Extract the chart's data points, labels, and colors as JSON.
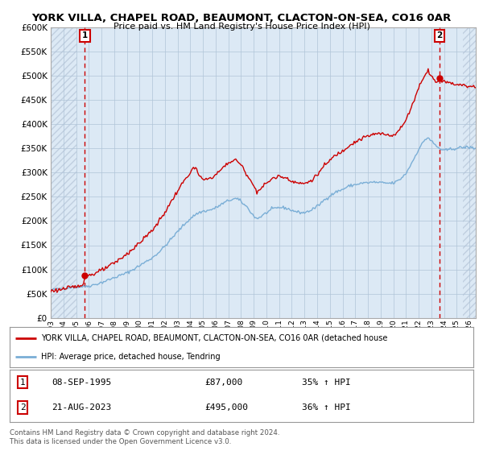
{
  "title": "YORK VILLA, CHAPEL ROAD, BEAUMONT, CLACTON-ON-SEA, CO16 0AR",
  "subtitle": "Price paid vs. HM Land Registry's House Price Index (HPI)",
  "ylim": [
    0,
    600000
  ],
  "yticks": [
    0,
    50000,
    100000,
    150000,
    200000,
    250000,
    300000,
    350000,
    400000,
    450000,
    500000,
    550000,
    600000
  ],
  "sale1_price": 87000,
  "sale2_price": 495000,
  "sale1_label": "08-SEP-1995",
  "sale2_label": "21-AUG-2023",
  "sale1_hpi": "35% ↑ HPI",
  "sale2_hpi": "36% ↑ HPI",
  "legend_line1": "YORK VILLA, CHAPEL ROAD, BEAUMONT, CLACTON-ON-SEA, CO16 0AR (detached house",
  "legend_line2": "HPI: Average price, detached house, Tendring",
  "footer1": "Contains HM Land Registry data © Crown copyright and database right 2024.",
  "footer2": "This data is licensed under the Open Government Licence v3.0.",
  "sale_color": "#cc0000",
  "hpi_color": "#7aaed6",
  "background_color": "#ffffff",
  "chart_bg": "#dce9f5",
  "hatch_color": "#c0cfe0",
  "xmin": 1993.0,
  "xmax": 2026.5,
  "sale1_x": 1995.69,
  "sale2_x": 2023.64
}
